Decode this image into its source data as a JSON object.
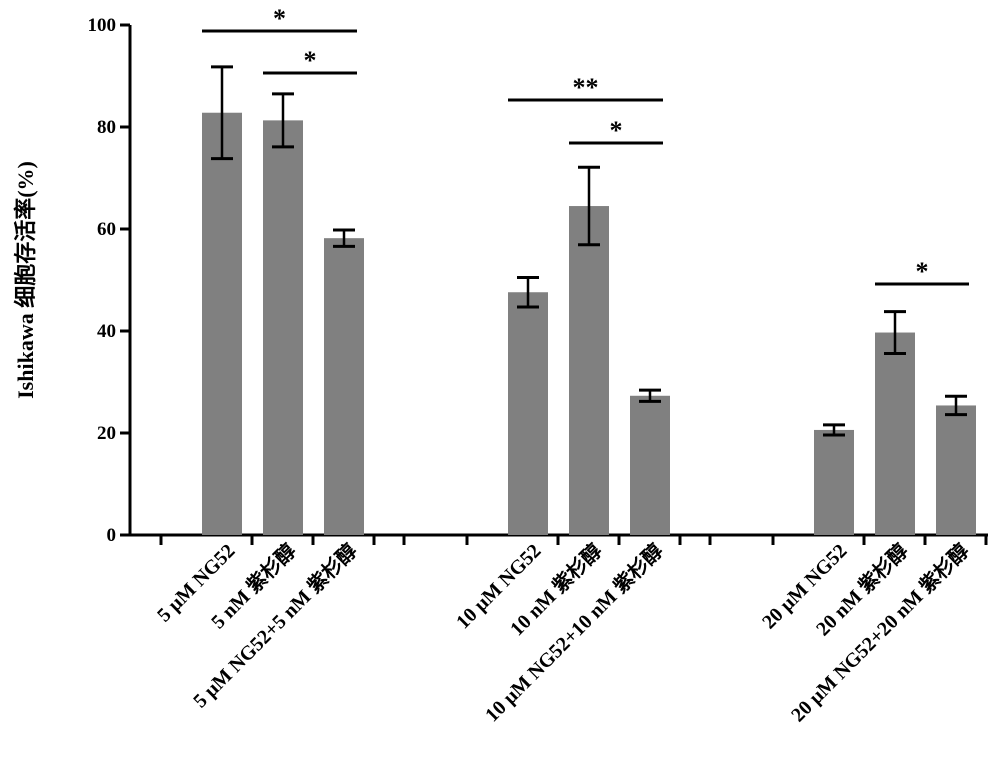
{
  "chart_data": {
    "type": "bar",
    "ylabel": "Ishikawa 细胞存活率(%)",
    "ylim": [
      0,
      100
    ],
    "yticks": [
      "0",
      "20",
      "40",
      "60",
      "80",
      "100"
    ],
    "grid": false,
    "bar_color": "#808080",
    "categories": [
      "5 μM NG52",
      "5 nM 紫杉醇",
      "5 μM NG52+5 nM 紫杉醇",
      "10 μM NG52",
      "10 nM 紫杉醇",
      "10 μM NG52+10 nM 紫杉醇",
      "20 μM NG52",
      "20 nM 紫杉醇",
      "20 μM NG52+20 nM 紫杉醇"
    ],
    "values": [
      82.8,
      81.3,
      58.2,
      47.6,
      64.5,
      27.3,
      20.6,
      39.7,
      25.4
    ],
    "errors": [
      9.0,
      5.2,
      1.6,
      2.9,
      7.6,
      1.1,
      1.0,
      4.1,
      1.8
    ],
    "significance": [
      {
        "from": 0,
        "to": 2,
        "label": "*"
      },
      {
        "from": 1,
        "to": 2,
        "label": "*"
      },
      {
        "from": 3,
        "to": 5,
        "label": "**"
      },
      {
        "from": 4,
        "to": 5,
        "label": "*"
      },
      {
        "from": 7,
        "to": 8,
        "label": "*"
      }
    ]
  }
}
